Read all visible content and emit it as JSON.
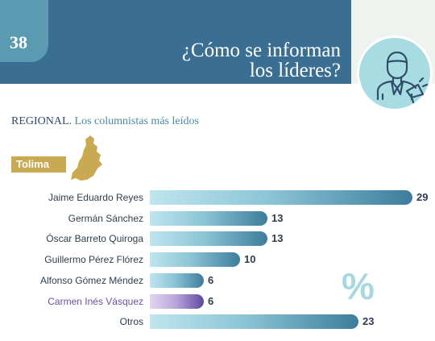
{
  "header": {
    "page_number": "38",
    "title_line1": "¿Cómo se informan",
    "title_line2": "los líderes?",
    "icon": "journalist-megaphone-icon"
  },
  "subtitle": {
    "lead": "REGIONAL.",
    "rest": "Los columnistas más leídos"
  },
  "region": {
    "label": "Tolima",
    "map_icon": "tolima-map-icon",
    "color": "#c9a951"
  },
  "percent_symbol": "%",
  "colors": {
    "header": "#3a6f93",
    "bar_dark": "#3d7d9c",
    "bar_highlight": "#5f47a0"
  },
  "chart_data": {
    "type": "bar",
    "orientation": "horizontal",
    "categories": [
      "Jaime Eduardo Reyes",
      "Germán Sánchez",
      "Óscar Barreto Quiroga",
      "Guillermo Pérez Flórez",
      "Alfonso Gómez Méndez",
      "Carmen Inés Vásquez",
      "Otros"
    ],
    "values": [
      29,
      13,
      13,
      10,
      6,
      6,
      23
    ],
    "highlighted": [
      "Carmen Inés Vásquez"
    ],
    "unit": "%",
    "xlim": [
      0,
      29
    ]
  }
}
